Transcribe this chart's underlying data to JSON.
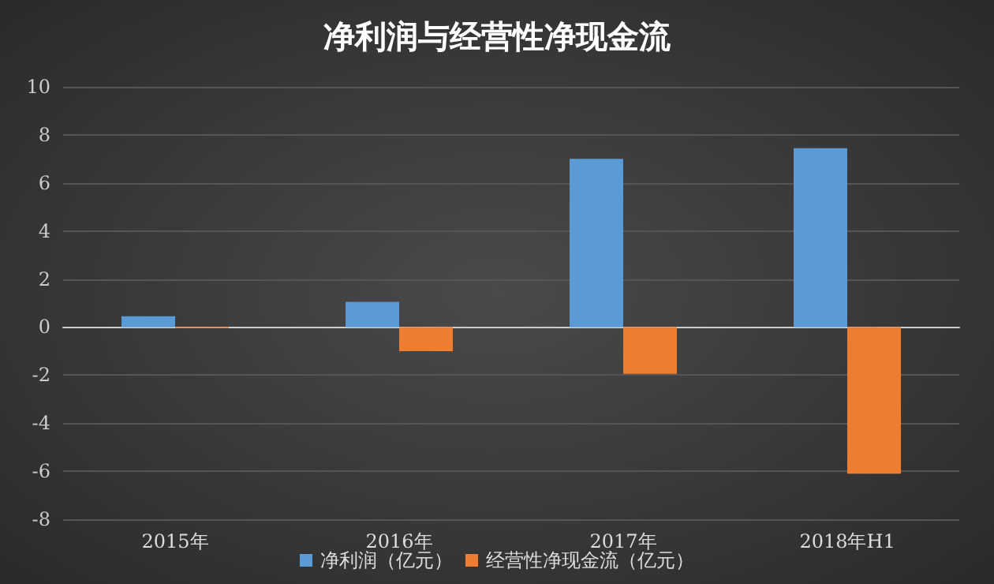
{
  "chart_data": {
    "type": "bar",
    "title": "净利润与经营性净现金流",
    "categories": [
      "2015年",
      "2016年",
      "2017年",
      "2018年H1"
    ],
    "series": [
      {
        "name": "净利润（亿元）",
        "color": "#5b9bd5",
        "values": [
          0.45,
          1.05,
          7.0,
          7.45
        ]
      },
      {
        "name": "经营性净现金流（亿元）",
        "color": "#ed7d31",
        "values": [
          -0.05,
          -1.0,
          -1.95,
          -6.1
        ]
      }
    ],
    "ylim": [
      -8,
      10
    ],
    "yticks": [
      -8,
      -6,
      -4,
      -2,
      0,
      2,
      4,
      6,
      8,
      10
    ],
    "grid": "y",
    "legend": "bottom"
  }
}
